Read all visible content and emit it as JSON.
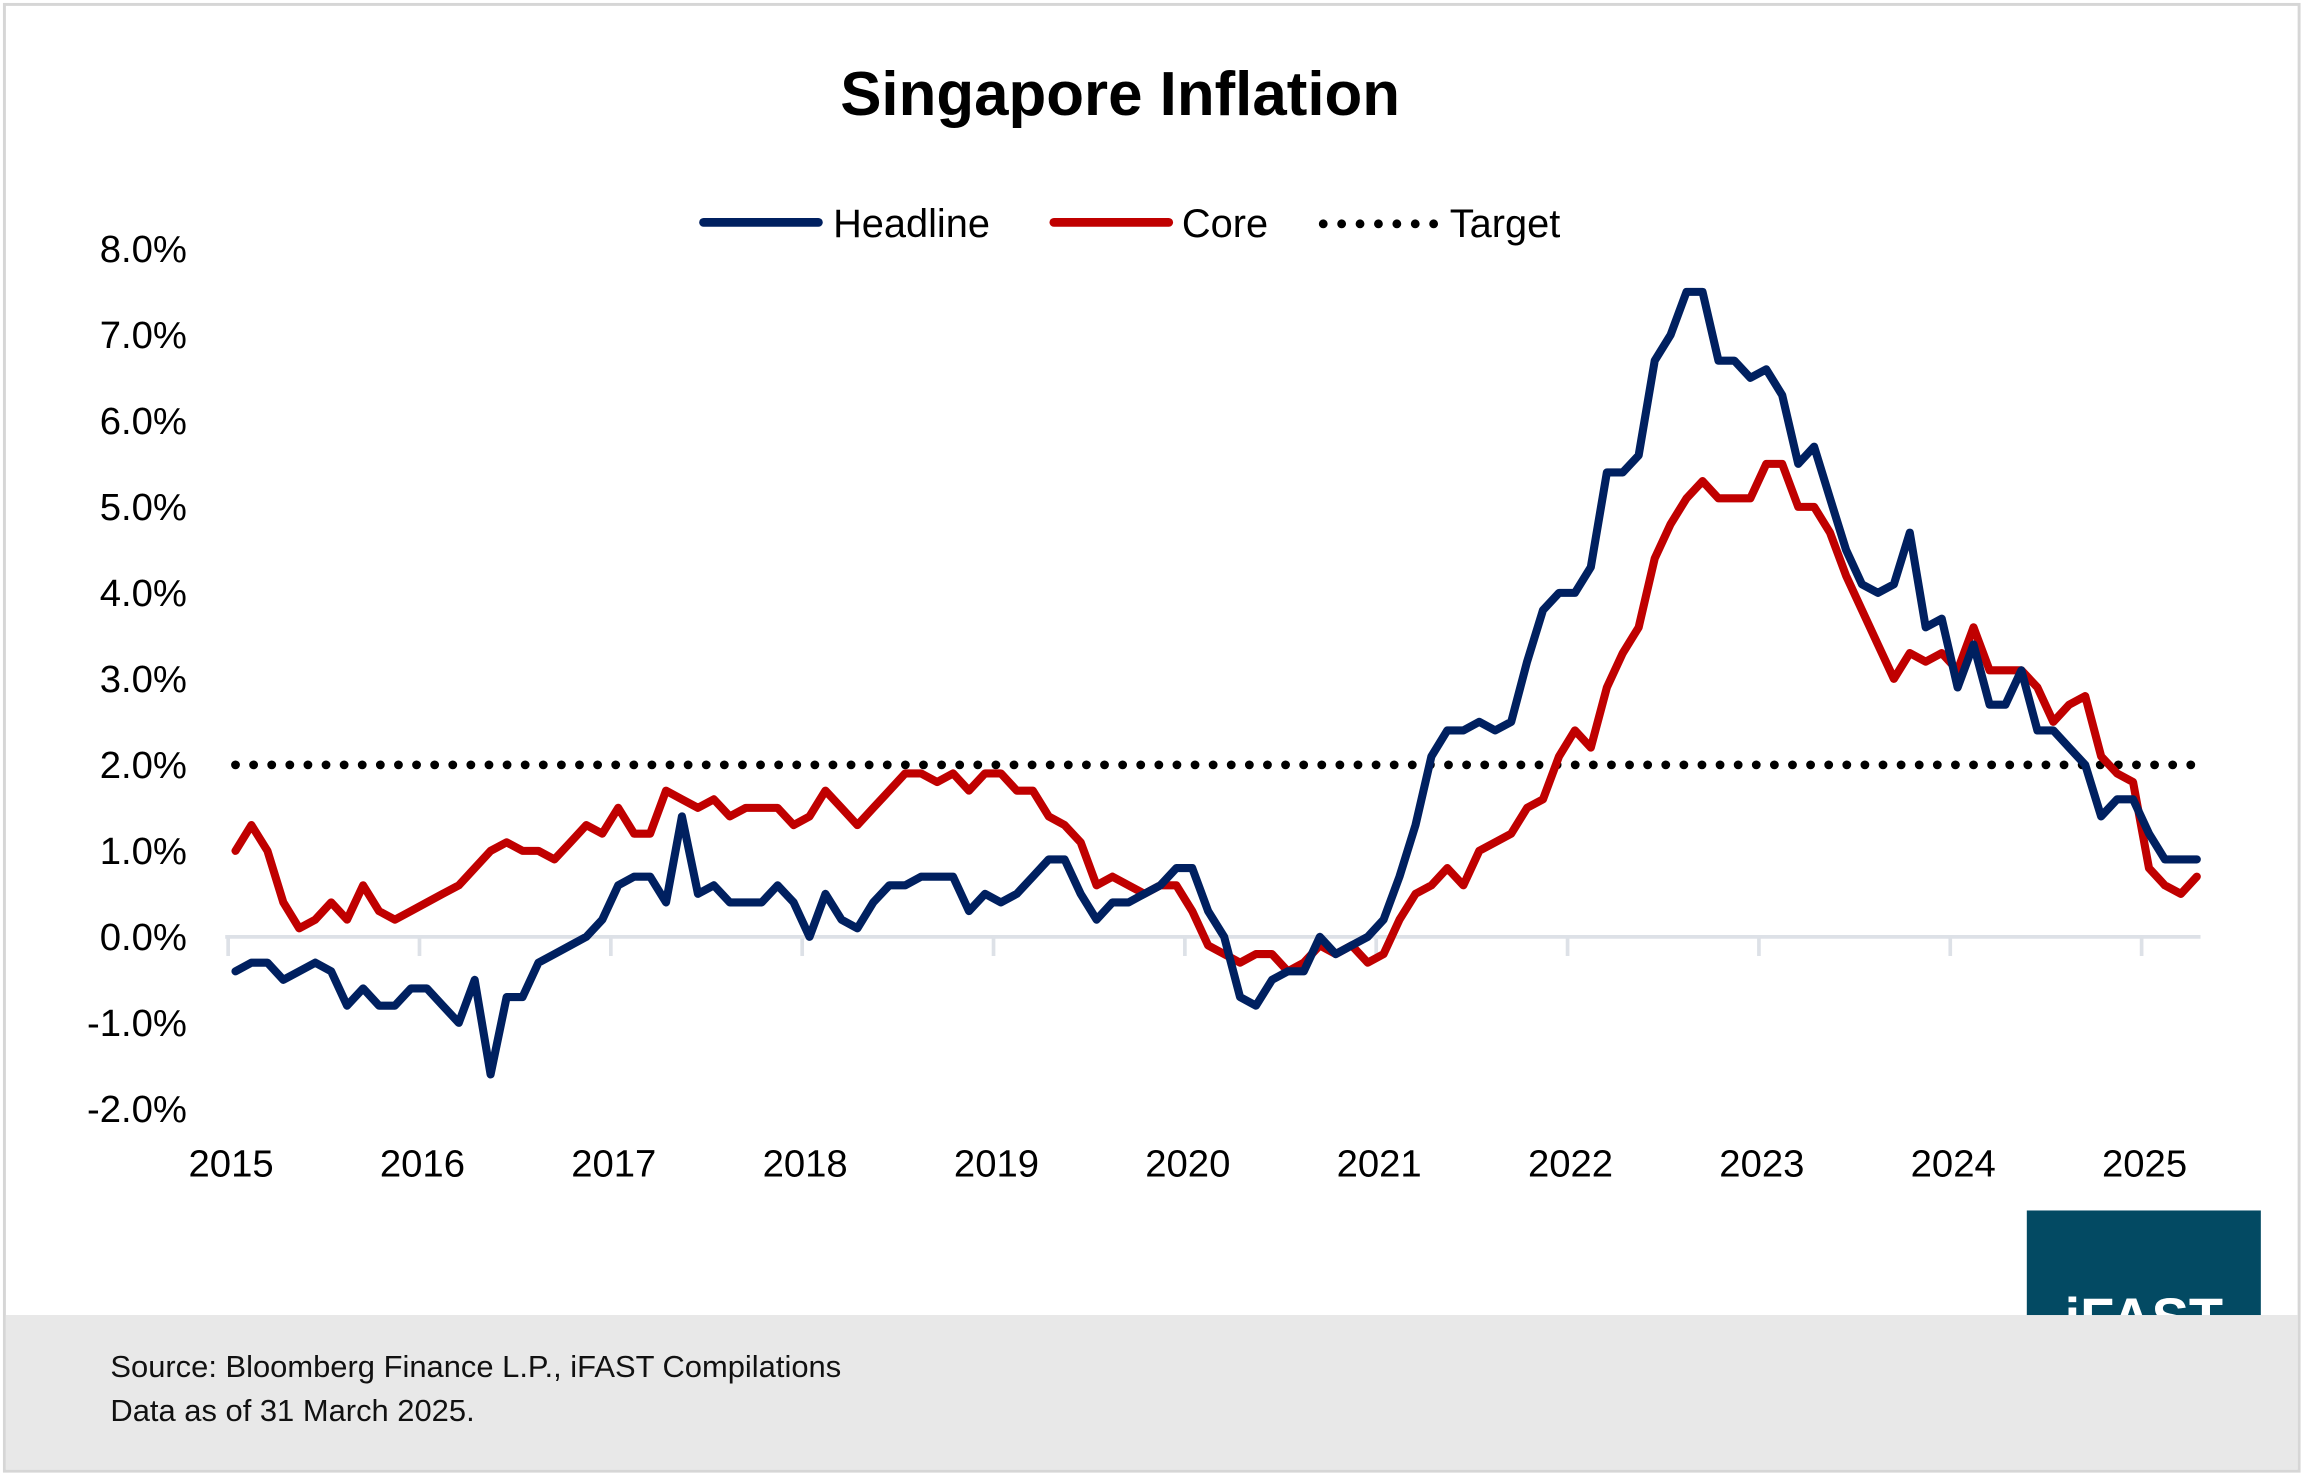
{
  "chart_data": {
    "type": "line",
    "title": "Singapore Inflation",
    "xlabel": "",
    "ylabel": "",
    "x_start": "2015-01",
    "x_end": "2025-04",
    "x_frequency": "monthly",
    "x_tick_labels": [
      "2015",
      "2016",
      "2017",
      "2018",
      "2019",
      "2020",
      "2021",
      "2022",
      "2023",
      "2024",
      "2025"
    ],
    "ylim": [
      -2.0,
      8.0
    ],
    "y_tick_labels": [
      "8.0%",
      "7.0%",
      "6.0%",
      "5.0%",
      "4.0%",
      "3.0%",
      "2.0%",
      "1.0%",
      "0.0%",
      "-1.0%",
      "-2.0%"
    ],
    "y_unit": "%",
    "grid": false,
    "legend": "top-center",
    "series": [
      {
        "name": "Headline",
        "color": "#002060",
        "style": "solid",
        "values": [
          -0.4,
          -0.3,
          -0.3,
          -0.5,
          -0.4,
          -0.3,
          -0.4,
          -0.8,
          -0.6,
          -0.8,
          -0.8,
          -0.6,
          -0.6,
          -0.8,
          -1.0,
          -0.5,
          -1.6,
          -0.7,
          -0.7,
          -0.3,
          -0.2,
          -0.1,
          0.0,
          0.2,
          0.6,
          0.7,
          0.7,
          0.4,
          1.4,
          0.5,
          0.6,
          0.4,
          0.4,
          0.4,
          0.6,
          0.4,
          0.0,
          0.5,
          0.2,
          0.1,
          0.4,
          0.6,
          0.6,
          0.7,
          0.7,
          0.7,
          0.3,
          0.5,
          0.4,
          0.5,
          0.7,
          0.9,
          0.9,
          0.5,
          0.2,
          0.4,
          0.4,
          0.5,
          0.6,
          0.8,
          0.8,
          0.3,
          0.0,
          -0.7,
          -0.8,
          -0.5,
          -0.4,
          -0.4,
          0.0,
          -0.2,
          -0.1,
          0.0,
          0.2,
          0.7,
          1.3,
          2.1,
          2.4,
          2.4,
          2.5,
          2.4,
          2.5,
          3.2,
          3.8,
          4.0,
          4.0,
          4.3,
          5.4,
          5.4,
          5.6,
          6.7,
          7.0,
          7.5,
          7.5,
          6.7,
          6.7,
          6.5,
          6.6,
          6.3,
          5.5,
          5.7,
          5.1,
          4.5,
          4.1,
          4.0,
          4.1,
          4.7,
          3.6,
          3.7,
          2.9,
          3.4,
          2.7,
          2.7,
          3.1,
          2.4,
          2.4,
          2.2,
          2.0,
          1.4,
          1.6,
          1.6,
          1.2,
          0.9,
          0.9,
          0.9
        ]
      },
      {
        "name": "Core",
        "color": "#c00000",
        "style": "solid",
        "values": [
          1.0,
          1.3,
          1.0,
          0.4,
          0.1,
          0.2,
          0.4,
          0.2,
          0.6,
          0.3,
          0.2,
          0.3,
          0.4,
          0.5,
          0.6,
          0.8,
          1.0,
          1.1,
          1.0,
          1.0,
          0.9,
          1.1,
          1.3,
          1.2,
          1.5,
          1.2,
          1.2,
          1.7,
          1.6,
          1.5,
          1.6,
          1.4,
          1.5,
          1.5,
          1.5,
          1.3,
          1.4,
          1.7,
          1.5,
          1.3,
          1.5,
          1.7,
          1.9,
          1.9,
          1.8,
          1.9,
          1.7,
          1.9,
          1.9,
          1.7,
          1.7,
          1.4,
          1.3,
          1.1,
          0.6,
          0.7,
          0.6,
          0.5,
          0.6,
          0.6,
          0.3,
          -0.1,
          -0.2,
          -0.3,
          -0.2,
          -0.2,
          -0.4,
          -0.3,
          -0.1,
          -0.2,
          -0.1,
          -0.3,
          -0.2,
          0.2,
          0.5,
          0.6,
          0.8,
          0.6,
          1.0,
          1.1,
          1.2,
          1.5,
          1.6,
          2.1,
          2.4,
          2.2,
          2.9,
          3.3,
          3.6,
          4.4,
          4.8,
          5.1,
          5.3,
          5.1,
          5.1,
          5.1,
          5.5,
          5.5,
          5.0,
          5.0,
          4.7,
          4.2,
          3.8,
          3.4,
          3.0,
          3.3,
          3.2,
          3.3,
          3.1,
          3.6,
          3.1,
          3.1,
          3.1,
          2.9,
          2.5,
          2.7,
          2.8,
          2.1,
          1.9,
          1.8,
          0.8,
          0.6,
          0.5,
          0.7
        ]
      },
      {
        "name": "Target",
        "color": "#000000",
        "style": "dotted",
        "constant": 2.0
      }
    ]
  },
  "footer": {
    "source": "Source: Bloomberg Finance L.P., iFAST Compilations",
    "data_as_of": "Data as of 31 March 2025."
  },
  "logo": {
    "text": "iFAST",
    "color": "#034a63"
  }
}
